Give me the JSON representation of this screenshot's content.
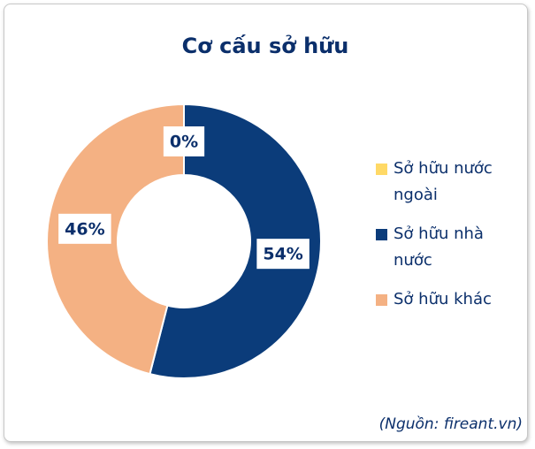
{
  "chart_data": {
    "type": "pie",
    "title": "Cơ cấu sở hữu",
    "categories": [
      "Sở hữu nước ngoài",
      "Sở hữu nhà nước",
      "Sở hữu khác"
    ],
    "values": [
      0,
      54,
      46
    ],
    "value_labels": [
      "0%",
      "54%",
      "46%"
    ],
    "colors": [
      "#ffd966",
      "#0b3c7a",
      "#f4b183"
    ],
    "annotation": "(Nguồn: fireant.vn)"
  }
}
